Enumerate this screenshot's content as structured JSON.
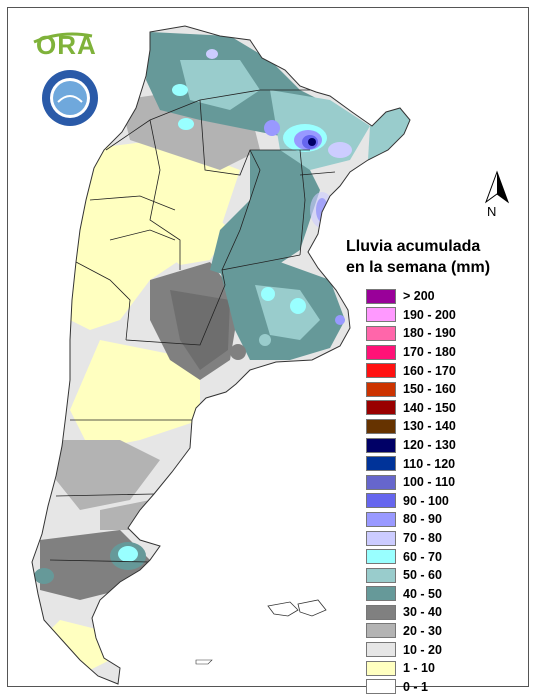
{
  "logo": {
    "text": "ORA",
    "seal_name": "seal-icon"
  },
  "compass": {
    "label": "N"
  },
  "legend": {
    "title_line1": "Lluvia acumulada",
    "title_line2": "en la semana (mm)",
    "items": [
      {
        "label": "> 200",
        "color": "#990099"
      },
      {
        "label": "190 - 200",
        "color": "#ff99ff"
      },
      {
        "label": "180 - 190",
        "color": "#ff66aa"
      },
      {
        "label": "170 - 180",
        "color": "#ff1177"
      },
      {
        "label": "160 - 170",
        "color": "#ff1111"
      },
      {
        "label": "150 - 160",
        "color": "#cc3300"
      },
      {
        "label": "140 - 150",
        "color": "#990000"
      },
      {
        "label": "130 - 140",
        "color": "#663300"
      },
      {
        "label": "120 - 130",
        "color": "#000066"
      },
      {
        "label": "110 - 120",
        "color": "#003399"
      },
      {
        "label": "100 - 110",
        "color": "#6666cc"
      },
      {
        "label": "90 - 100",
        "color": "#6666ee"
      },
      {
        "label": "80 - 90",
        "color": "#9999ff"
      },
      {
        "label": "70 - 80",
        "color": "#ccccff"
      },
      {
        "label": "60 - 70",
        "color": "#99ffff"
      },
      {
        "label": "50 - 60",
        "color": "#99cccc"
      },
      {
        "label": "40 - 50",
        "color": "#669999"
      },
      {
        "label": "30 - 40",
        "color": "#808080"
      },
      {
        "label": "20 - 30",
        "color": "#b3b3b3"
      },
      {
        "label": "10 - 20",
        "color": "#e6e6e6"
      },
      {
        "label": "1 - 10",
        "color": "#ffffc0"
      },
      {
        "label": "0 - 1",
        "color": "#ffffff"
      }
    ]
  }
}
